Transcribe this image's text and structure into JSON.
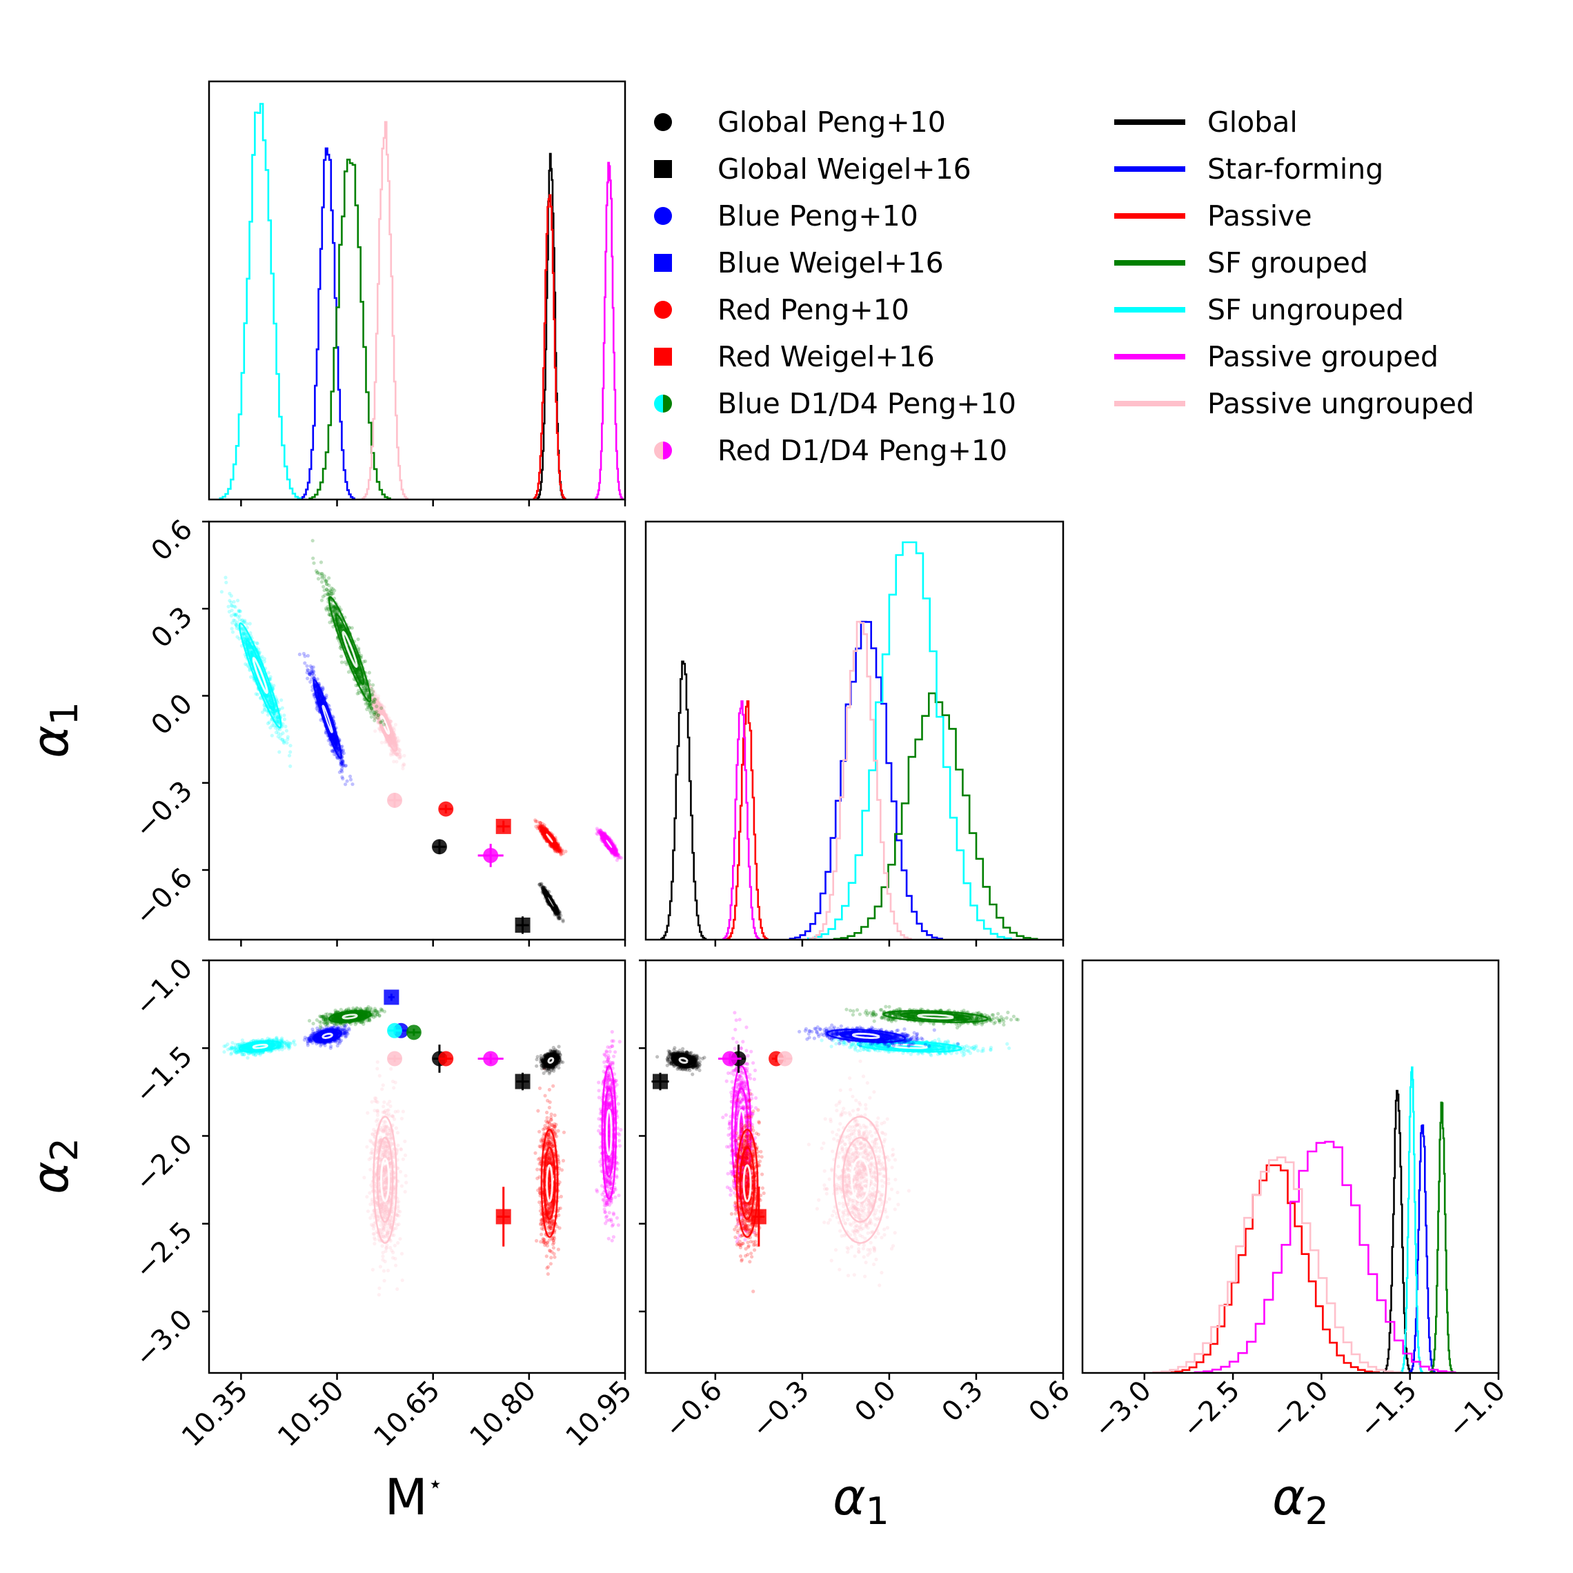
{
  "chart_data": {
    "type": "scatter",
    "subtype": "corner-plot",
    "parameters": [
      "M*",
      "alpha_1",
      "alpha_2"
    ],
    "axis_labels": {
      "mstar": "M",
      "mstar_super": "⋆",
      "alpha1": "α",
      "alpha1_sub": "1",
      "alpha2": "α",
      "alpha2_sub": "2"
    },
    "ticks": {
      "mstar": [
        "10.35",
        "10.50",
        "10.65",
        "10.80",
        "10.95"
      ],
      "mstar_values": [
        10.35,
        10.5,
        10.65,
        10.8,
        10.95
      ],
      "alpha1": [
        "−0.6",
        "−0.3",
        "0.0",
        "0.3",
        "0.6"
      ],
      "alpha1_values": [
        -0.6,
        -0.3,
        0.0,
        0.3,
        0.6
      ],
      "alpha2": [
        "−3.0",
        "−2.5",
        "−2.0",
        "−1.5",
        "−1.0"
      ],
      "alpha2_values": [
        -3.0,
        -2.5,
        -2.0,
        -1.5,
        -1.0
      ]
    },
    "ranges": {
      "mstar": [
        10.3,
        10.95
      ],
      "alpha1": [
        -0.84,
        0.6
      ],
      "alpha2": [
        -3.35,
        -1.0
      ]
    },
    "grid": false,
    "legend_placement": "top-right",
    "points_legend": [
      {
        "label": "Global Peng+10",
        "marker": "circle",
        "color": "#000000"
      },
      {
        "label": "Global Weigel+16",
        "marker": "square",
        "color": "#000000"
      },
      {
        "label": "Blue Peng+10",
        "marker": "circle",
        "color": "#0000ff"
      },
      {
        "label": "Blue Weigel+16",
        "marker": "square",
        "color": "#0000ff"
      },
      {
        "label": "Red Peng+10",
        "marker": "circle",
        "color": "#ff0000"
      },
      {
        "label": "Red Weigel+16",
        "marker": "square",
        "color": "#ff0000"
      },
      {
        "label": "Blue D1/D4 Peng+10",
        "marker": "half-circle",
        "color": "#00ffff",
        "color2": "#008000"
      },
      {
        "label": "Red D1/D4 Peng+10",
        "marker": "half-circle",
        "color": "#ffc0cb",
        "color2": "#ff00ff"
      }
    ],
    "lines_legend": [
      {
        "label": "Global",
        "color": "#000000"
      },
      {
        "label": "Star-forming",
        "color": "#0000ff"
      },
      {
        "label": "Passive",
        "color": "#ff0000"
      },
      {
        "label": "SF grouped",
        "color": "#008000"
      },
      {
        "label": "SF ungrouped",
        "color": "#00ffff"
      },
      {
        "label": "Passive grouped",
        "color": "#ff00ff"
      },
      {
        "label": "Passive ungrouped",
        "color": "#ffc0cb"
      }
    ],
    "posteriors": [
      {
        "name": "Global",
        "color": "#000000",
        "mstar": 10.834,
        "sd_mstar": 0.006,
        "alpha1": -0.71,
        "sd_alpha1": 0.022,
        "alpha2": -1.57,
        "sd_alpha2": 0.022,
        "r12": -0.95,
        "r13": 0.3,
        "r23": -0.3,
        "hist_peak_mstar": 0.87,
        "hist_peak_alpha1": 0.7,
        "hist_peak_alpha2": 0.72
      },
      {
        "name": "Star-forming",
        "color": "#0000ff",
        "mstar": 10.485,
        "sd_mstar": 0.012,
        "alpha1": -0.08,
        "sd_alpha1": 0.075,
        "alpha2": -1.43,
        "sd_alpha2": 0.02,
        "r12": -0.95,
        "r13": 0.4,
        "r23": -0.4,
        "hist_peak_mstar": 0.89,
        "hist_peak_alpha1": 0.8,
        "hist_peak_alpha2": 0.66
      },
      {
        "name": "Passive",
        "color": "#ff0000",
        "mstar": 10.832,
        "sd_mstar": 0.007,
        "alpha1": -0.49,
        "sd_alpha1": 0.02,
        "alpha2": -2.27,
        "sd_alpha2": 0.17,
        "r12": -0.9,
        "r13": 0.0,
        "r23": 0.0,
        "hist_peak_mstar": 0.78,
        "hist_peak_alpha1": 0.6,
        "hist_peak_alpha2": 0.53
      },
      {
        "name": "SF grouped",
        "color": "#008000",
        "mstar": 10.52,
        "sd_mstar": 0.018,
        "alpha1": 0.16,
        "sd_alpha1": 0.1,
        "alpha2": -1.32,
        "sd_alpha2": 0.018,
        "r12": -0.95,
        "r13": 0.4,
        "r23": -0.4,
        "hist_peak_mstar": 0.87,
        "hist_peak_alpha1": 0.62,
        "hist_peak_alpha2": 0.69
      },
      {
        "name": "SF ungrouped",
        "color": "#00ffff",
        "mstar": 10.38,
        "sd_mstar": 0.018,
        "alpha1": 0.07,
        "sd_alpha1": 0.1,
        "alpha2": -1.49,
        "sd_alpha2": 0.017,
        "r12": -0.95,
        "r13": 0.4,
        "r23": -0.4,
        "hist_peak_mstar": 1.0,
        "hist_peak_alpha1": 1.0,
        "hist_peak_alpha2": 0.78
      },
      {
        "name": "Passive grouped",
        "color": "#ff00ff",
        "mstar": 10.925,
        "sd_mstar": 0.006,
        "alpha1": -0.51,
        "sd_alpha1": 0.018,
        "alpha2": -1.98,
        "sd_alpha2": 0.21,
        "r12": -0.9,
        "r13": 0.0,
        "r23": 0.0,
        "hist_peak_mstar": 0.87,
        "hist_peak_alpha1": 0.6,
        "hist_peak_alpha2": 0.59
      },
      {
        "name": "Passive ungrouped",
        "color": "#ffc0cb",
        "mstar": 10.575,
        "sd_mstar": 0.01,
        "alpha1": -0.1,
        "sd_alpha1": 0.05,
        "alpha2": -2.25,
        "sd_alpha2": 0.2,
        "r12": -0.9,
        "r13": 0.0,
        "r23": 0.0,
        "hist_peak_mstar": 0.95,
        "hist_peak_alpha1": 0.8,
        "hist_peak_alpha2": 0.55
      }
    ],
    "literature_points": [
      {
        "label": "Global Peng+10",
        "marker": "circle",
        "color": "#000000",
        "mstar": 10.66,
        "alpha1": -0.52,
        "alpha2": -1.56,
        "err_mstar": 0.01,
        "err_alpha1": 0.025,
        "err_alpha2": 0.08
      },
      {
        "label": "Global Weigel+16",
        "marker": "square",
        "color": "#000000",
        "mstar": 10.79,
        "alpha1": -0.79,
        "alpha2": -1.69,
        "err_mstar": 0.01,
        "err_alpha1": 0.03,
        "err_alpha2": 0.05
      },
      {
        "label": "Blue Peng+10",
        "marker": "circle",
        "color": "#0000ff",
        "mstar": 10.6,
        "alpha1": null,
        "alpha2": -1.4,
        "err_mstar": 0.01,
        "err_alpha1": 0,
        "err_alpha2": 0.02
      },
      {
        "label": "Blue Weigel+16",
        "marker": "square",
        "color": "#0000ff",
        "mstar": 10.585,
        "alpha1": null,
        "alpha2": -1.21,
        "err_mstar": 0.005,
        "err_alpha1": 0,
        "err_alpha2": 0.02
      },
      {
        "label": "Red Peng+10",
        "marker": "circle",
        "color": "#ff0000",
        "mstar": 10.67,
        "alpha1": -0.39,
        "alpha2": -1.56,
        "err_mstar": 0.01,
        "err_alpha1": 0.015,
        "err_alpha2": 0.02
      },
      {
        "label": "Red Weigel+16",
        "marker": "square",
        "color": "#ff0000",
        "mstar": 10.76,
        "alpha1": -0.45,
        "alpha2": -2.46,
        "err_mstar": 0.01,
        "err_alpha1": 0.02,
        "err_alpha2": 0.17
      },
      {
        "label": "Blue D1/D4 Peng+10",
        "marker": "circle",
        "color": "#00ffff",
        "mstar": 10.59,
        "alpha1": null,
        "alpha2": -1.4,
        "err_mstar": 0.01,
        "err_alpha1": 0,
        "err_alpha2": 0.02
      },
      {
        "label": "Blue D1/D4 Peng+10",
        "marker": "circle",
        "color": "#008000",
        "mstar": 10.62,
        "alpha1": null,
        "alpha2": -1.41,
        "err_mstar": 0.01,
        "err_alpha1": 0,
        "err_alpha2": 0.02
      },
      {
        "label": "Red D1/D4 Peng+10",
        "marker": "circle",
        "color": "#ffc0cb",
        "mstar": 10.59,
        "alpha1": -0.36,
        "alpha2": -1.56,
        "err_mstar": 0.01,
        "err_alpha1": 0.025,
        "err_alpha2": 0.02
      },
      {
        "label": "Red D1/D4 Peng+10",
        "marker": "circle",
        "color": "#ff00ff",
        "mstar": 10.74,
        "alpha1": -0.55,
        "alpha2": -1.56,
        "err_mstar": 0.02,
        "err_alpha1": 0.04,
        "err_alpha2": 0.03
      }
    ]
  }
}
